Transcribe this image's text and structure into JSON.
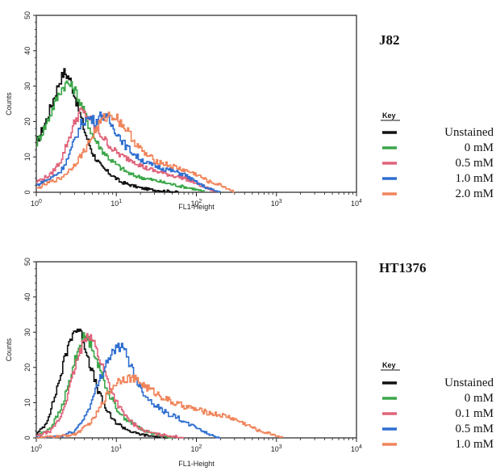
{
  "chart_data": [
    {
      "type": "line",
      "title": "J82",
      "xlabel": "FL1-Height",
      "ylabel": "Counts",
      "x_scale": "log",
      "xlim": [
        1,
        10000
      ],
      "ylim": [
        0,
        50
      ],
      "x_ticks": [
        {
          "value": 1,
          "base": "10",
          "exp": "0"
        },
        {
          "value": 10,
          "base": "10",
          "exp": "1"
        },
        {
          "value": 100,
          "base": "10",
          "exp": "2"
        },
        {
          "value": 1000,
          "base": "10",
          "exp": "3"
        },
        {
          "value": 10000,
          "base": "10",
          "exp": "4"
        }
      ],
      "y_ticks": [
        "0",
        "10",
        "20",
        "30",
        "40",
        "50"
      ],
      "key_title": "Key",
      "series": [
        {
          "name": "Unstained",
          "color": "#111111",
          "x": [
            1,
            1.3,
            1.6,
            1.9,
            2.2,
            2.6,
            3.2,
            4,
            5,
            6.5,
            8.5,
            11,
            15,
            20,
            30,
            45,
            60
          ],
          "y": [
            14,
            20,
            26,
            31,
            34,
            32,
            25,
            17,
            11,
            7,
            5,
            3,
            2,
            1.2,
            0.6,
            0.3,
            0
          ]
        },
        {
          "name": "0 mM",
          "color": "#3aa648",
          "x": [
            1,
            1.3,
            1.6,
            2,
            2.4,
            3,
            4,
            5,
            6.5,
            8.5,
            11,
            15,
            22,
            35,
            55,
            90,
            130
          ],
          "y": [
            14,
            19,
            24,
            29,
            31,
            29,
            22,
            16,
            12,
            9,
            7,
            5,
            4,
            3,
            2,
            1,
            0
          ]
        },
        {
          "name": "0.5 mM",
          "color": "#e0637a",
          "x": [
            1,
            1.5,
            2,
            2.5,
            3,
            3.5,
            4.5,
            5.5,
            7,
            9,
            12,
            16,
            22,
            30,
            45,
            70,
            110,
            180
          ],
          "y": [
            3,
            5,
            9,
            15,
            20,
            23,
            21,
            18,
            15,
            12,
            10,
            9,
            7,
            6,
            5,
            4,
            2,
            0
          ]
        },
        {
          "name": "1.0 mM",
          "color": "#2f6fd0",
          "x": [
            1,
            1.5,
            2,
            2.5,
            3,
            3.7,
            4.5,
            5.5,
            6.5,
            8,
            10,
            13,
            18,
            25,
            35,
            50,
            70,
            95,
            140,
            200
          ],
          "y": [
            2,
            4,
            6,
            10,
            15,
            20,
            21,
            20,
            22,
            20,
            17,
            13,
            10,
            8,
            7,
            6,
            5,
            3,
            1,
            0
          ]
        },
        {
          "name": "2.0 mM",
          "color": "#f0845a",
          "x": [
            1,
            1.5,
            2,
            2.5,
            3,
            4,
            5,
            6,
            7,
            8.5,
            10,
            13,
            17,
            22,
            30,
            40,
            55,
            75,
            100,
            140,
            200,
            300
          ],
          "y": [
            1,
            3,
            4,
            6,
            8,
            12,
            16,
            19,
            21,
            22,
            21,
            18,
            14,
            11,
            9,
            8,
            7,
            6,
            5,
            3,
            2,
            0
          ]
        }
      ]
    },
    {
      "type": "line",
      "title": "HT1376",
      "xlabel": "FL1-Height",
      "ylabel": "Counts",
      "x_scale": "log",
      "xlim": [
        1,
        10000
      ],
      "ylim": [
        0,
        50
      ],
      "x_ticks": [
        {
          "value": 1,
          "base": "10",
          "exp": "0"
        },
        {
          "value": 10,
          "base": "10",
          "exp": "1"
        },
        {
          "value": 100,
          "base": "10",
          "exp": "2"
        },
        {
          "value": 1000,
          "base": "10",
          "exp": "3"
        },
        {
          "value": 10000,
          "base": "10",
          "exp": "4"
        }
      ],
      "y_ticks": [
        "0",
        "10",
        "20",
        "30",
        "40",
        "50"
      ],
      "key_title": "Key",
      "series": [
        {
          "name": "Unstained",
          "color": "#111111",
          "x": [
            1,
            1.3,
            1.6,
            2,
            2.4,
            2.8,
            3.3,
            3.8,
            4.5,
            5.5,
            7,
            9,
            12,
            16,
            22,
            32,
            45
          ],
          "y": [
            1,
            4,
            10,
            18,
            25,
            30,
            31,
            28,
            22,
            15,
            9,
            5,
            3,
            1.5,
            0.8,
            0.3,
            0
          ]
        },
        {
          "name": "0 mM",
          "color": "#3aa648",
          "x": [
            1,
            1.5,
            2,
            2.5,
            3,
            3.5,
            4,
            5,
            6,
            7.5,
            9.5,
            12,
            16,
            22,
            32,
            50
          ],
          "y": [
            0.5,
            3,
            8,
            15,
            22,
            27,
            29,
            26,
            20,
            14,
            9,
            6,
            4,
            2,
            1,
            0
          ]
        },
        {
          "name": "0.1 mM",
          "color": "#e0637a",
          "x": [
            1,
            1.5,
            2,
            2.5,
            3,
            3.7,
            4.3,
            5,
            6,
            7.5,
            9.5,
            12,
            16,
            22,
            32,
            50,
            70
          ],
          "y": [
            0.5,
            2,
            6,
            13,
            20,
            26,
            30,
            28,
            23,
            17,
            11,
            7,
            4,
            2,
            1,
            0.5,
            0
          ]
        },
        {
          "name": "0.5 mM",
          "color": "#2f6fd0",
          "x": [
            1,
            2,
            3,
            4,
            5,
            6,
            7,
            8,
            9.5,
            11,
            13,
            16,
            20,
            25,
            32,
            42,
            55,
            75,
            100,
            140,
            200
          ],
          "y": [
            0,
            0.5,
            2,
            6,
            11,
            16,
            20,
            23,
            25,
            26,
            24,
            19,
            14,
            11,
            9,
            7,
            6,
            4,
            3,
            1,
            0
          ]
        },
        {
          "name": "1.0 mM",
          "color": "#f0845a",
          "x": [
            1,
            2,
            3,
            4,
            5,
            6,
            7,
            8.5,
            10,
            12,
            15,
            19,
            25,
            35,
            50,
            70,
            100,
            150,
            250,
            400,
            600,
            900,
            1200
          ],
          "y": [
            0,
            0.5,
            1,
            3,
            5,
            8,
            11,
            14,
            16,
            17,
            17,
            16,
            14,
            12,
            10,
            9,
            8,
            7,
            6,
            4,
            2,
            1,
            0
          ]
        }
      ]
    }
  ]
}
